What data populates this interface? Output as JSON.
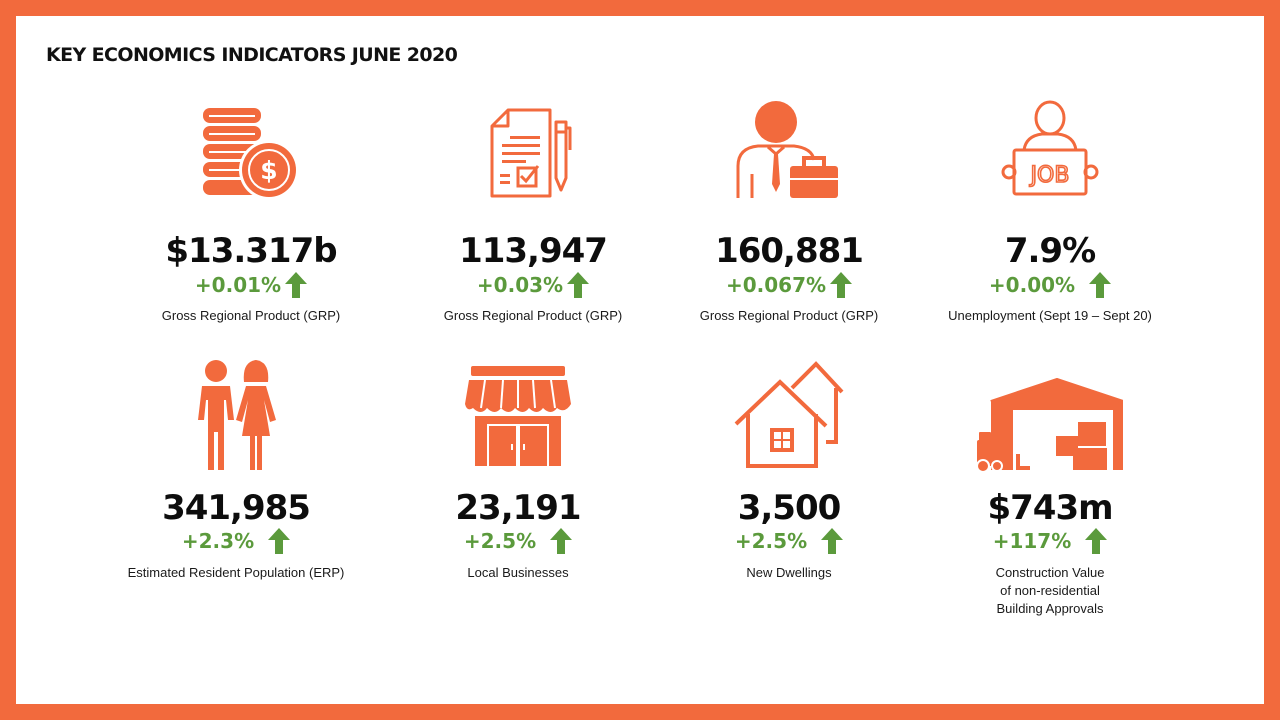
{
  "title": "KEY ECONOMICS INDICATORS JUNE 2020",
  "colors": {
    "frame": "#f26a3d",
    "icon": "#f26a3d",
    "positive": "#5b9a3c",
    "text": "#111111"
  },
  "indicators": [
    {
      "icon": "coins-dollar-icon",
      "value": "$13.317b",
      "change": "+0.01%",
      "trend": "up",
      "label": "Gross Regional Product (GRP)"
    },
    {
      "icon": "document-pen-icon",
      "value": "113,947",
      "change": "+0.03%",
      "trend": "up",
      "label": "Gross Regional Product (GRP)"
    },
    {
      "icon": "businessman-briefcase-icon",
      "value": "160,881",
      "change": "+0.067%",
      "trend": "up",
      "label": "Gross Regional Product (GRP)"
    },
    {
      "icon": "job-sign-person-icon",
      "value": "7.9%",
      "change": "+0.00%",
      "trend": "up",
      "label": "Unemployment (Sept 19 – Sept 20)"
    },
    {
      "icon": "couple-people-icon",
      "value": "341,985",
      "change": "+2.3%",
      "trend": "up",
      "label": "Estimated Resident Population (ERP)"
    },
    {
      "icon": "storefront-icon",
      "value": "23,191",
      "change": "+2.5%",
      "trend": "up",
      "label": "Local Businesses"
    },
    {
      "icon": "houses-icon",
      "value": "3,500",
      "change": "+2.5%",
      "trend": "up",
      "label": "New Dwellings"
    },
    {
      "icon": "warehouse-forklift-icon",
      "value": "$743m",
      "change": "+117%",
      "trend": "up",
      "label_lines": [
        "Construction Value",
        "of non-residential",
        "Building Approvals"
      ]
    }
  ]
}
